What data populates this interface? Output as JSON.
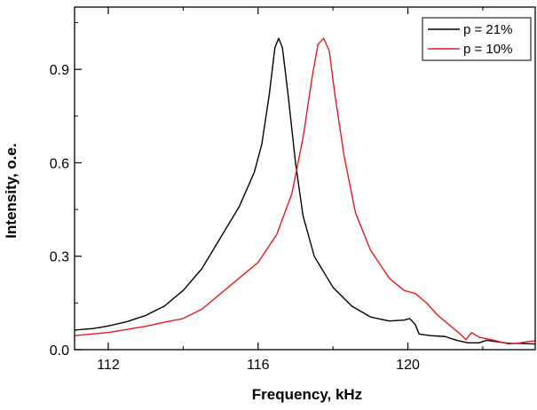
{
  "chart_data": {
    "type": "line",
    "title": "",
    "xlabel": "Frequency, kHz",
    "ylabel": "Intensity, o.e.",
    "xlim": [
      111.1,
      123.4
    ],
    "ylim": [
      0.0,
      1.1
    ],
    "x_ticks": [
      112,
      116,
      120
    ],
    "y_ticks": [
      0.0,
      0.3,
      0.6,
      0.9
    ],
    "x_tick_labels": [
      "112",
      "116",
      "120"
    ],
    "y_tick_labels": [
      "0.0",
      "0.3",
      "0.6",
      "0.9"
    ],
    "grid": false,
    "legend_position": "top-right",
    "series": [
      {
        "name": "p = 21%",
        "color": "#000000",
        "points": [
          [
            111.1,
            0.063
          ],
          [
            111.6,
            0.068
          ],
          [
            112.0,
            0.076
          ],
          [
            112.5,
            0.09
          ],
          [
            113.0,
            0.11
          ],
          [
            113.5,
            0.14
          ],
          [
            114.0,
            0.19
          ],
          [
            114.5,
            0.26
          ],
          [
            115.0,
            0.36
          ],
          [
            115.5,
            0.46
          ],
          [
            115.9,
            0.57
          ],
          [
            116.1,
            0.66
          ],
          [
            116.3,
            0.82
          ],
          [
            116.45,
            0.97
          ],
          [
            116.55,
            1.0
          ],
          [
            116.65,
            0.97
          ],
          [
            116.8,
            0.82
          ],
          [
            117.0,
            0.6
          ],
          [
            117.2,
            0.43
          ],
          [
            117.5,
            0.3
          ],
          [
            118.0,
            0.2
          ],
          [
            118.5,
            0.14
          ],
          [
            119.0,
            0.105
          ],
          [
            119.5,
            0.092
          ],
          [
            119.9,
            0.095
          ],
          [
            120.05,
            0.1
          ],
          [
            120.2,
            0.08
          ],
          [
            120.3,
            0.05
          ],
          [
            120.6,
            0.045
          ],
          [
            121.0,
            0.042
          ],
          [
            121.3,
            0.03
          ],
          [
            121.6,
            0.022
          ],
          [
            121.9,
            0.022
          ],
          [
            122.1,
            0.03
          ],
          [
            122.4,
            0.025
          ],
          [
            122.7,
            0.02
          ],
          [
            123.0,
            0.02
          ],
          [
            123.4,
            0.018
          ]
        ]
      },
      {
        "name": "p = 10%",
        "color": "#e41a1c",
        "points": [
          [
            111.1,
            0.045
          ],
          [
            112.0,
            0.055
          ],
          [
            112.5,
            0.065
          ],
          [
            113.0,
            0.075
          ],
          [
            113.5,
            0.088
          ],
          [
            114.0,
            0.1
          ],
          [
            114.5,
            0.13
          ],
          [
            115.0,
            0.18
          ],
          [
            115.5,
            0.23
          ],
          [
            116.0,
            0.28
          ],
          [
            116.5,
            0.37
          ],
          [
            116.9,
            0.5
          ],
          [
            117.2,
            0.68
          ],
          [
            117.45,
            0.88
          ],
          [
            117.6,
            0.98
          ],
          [
            117.75,
            1.0
          ],
          [
            117.9,
            0.96
          ],
          [
            118.05,
            0.82
          ],
          [
            118.3,
            0.62
          ],
          [
            118.6,
            0.44
          ],
          [
            119.0,
            0.32
          ],
          [
            119.5,
            0.23
          ],
          [
            119.9,
            0.19
          ],
          [
            120.2,
            0.18
          ],
          [
            120.5,
            0.15
          ],
          [
            120.8,
            0.11
          ],
          [
            121.1,
            0.08
          ],
          [
            121.4,
            0.05
          ],
          [
            121.55,
            0.032
          ],
          [
            121.7,
            0.055
          ],
          [
            121.9,
            0.04
          ],
          [
            122.3,
            0.03
          ],
          [
            122.7,
            0.018
          ],
          [
            123.0,
            0.022
          ],
          [
            123.2,
            0.026
          ],
          [
            123.4,
            0.028
          ]
        ]
      }
    ]
  }
}
